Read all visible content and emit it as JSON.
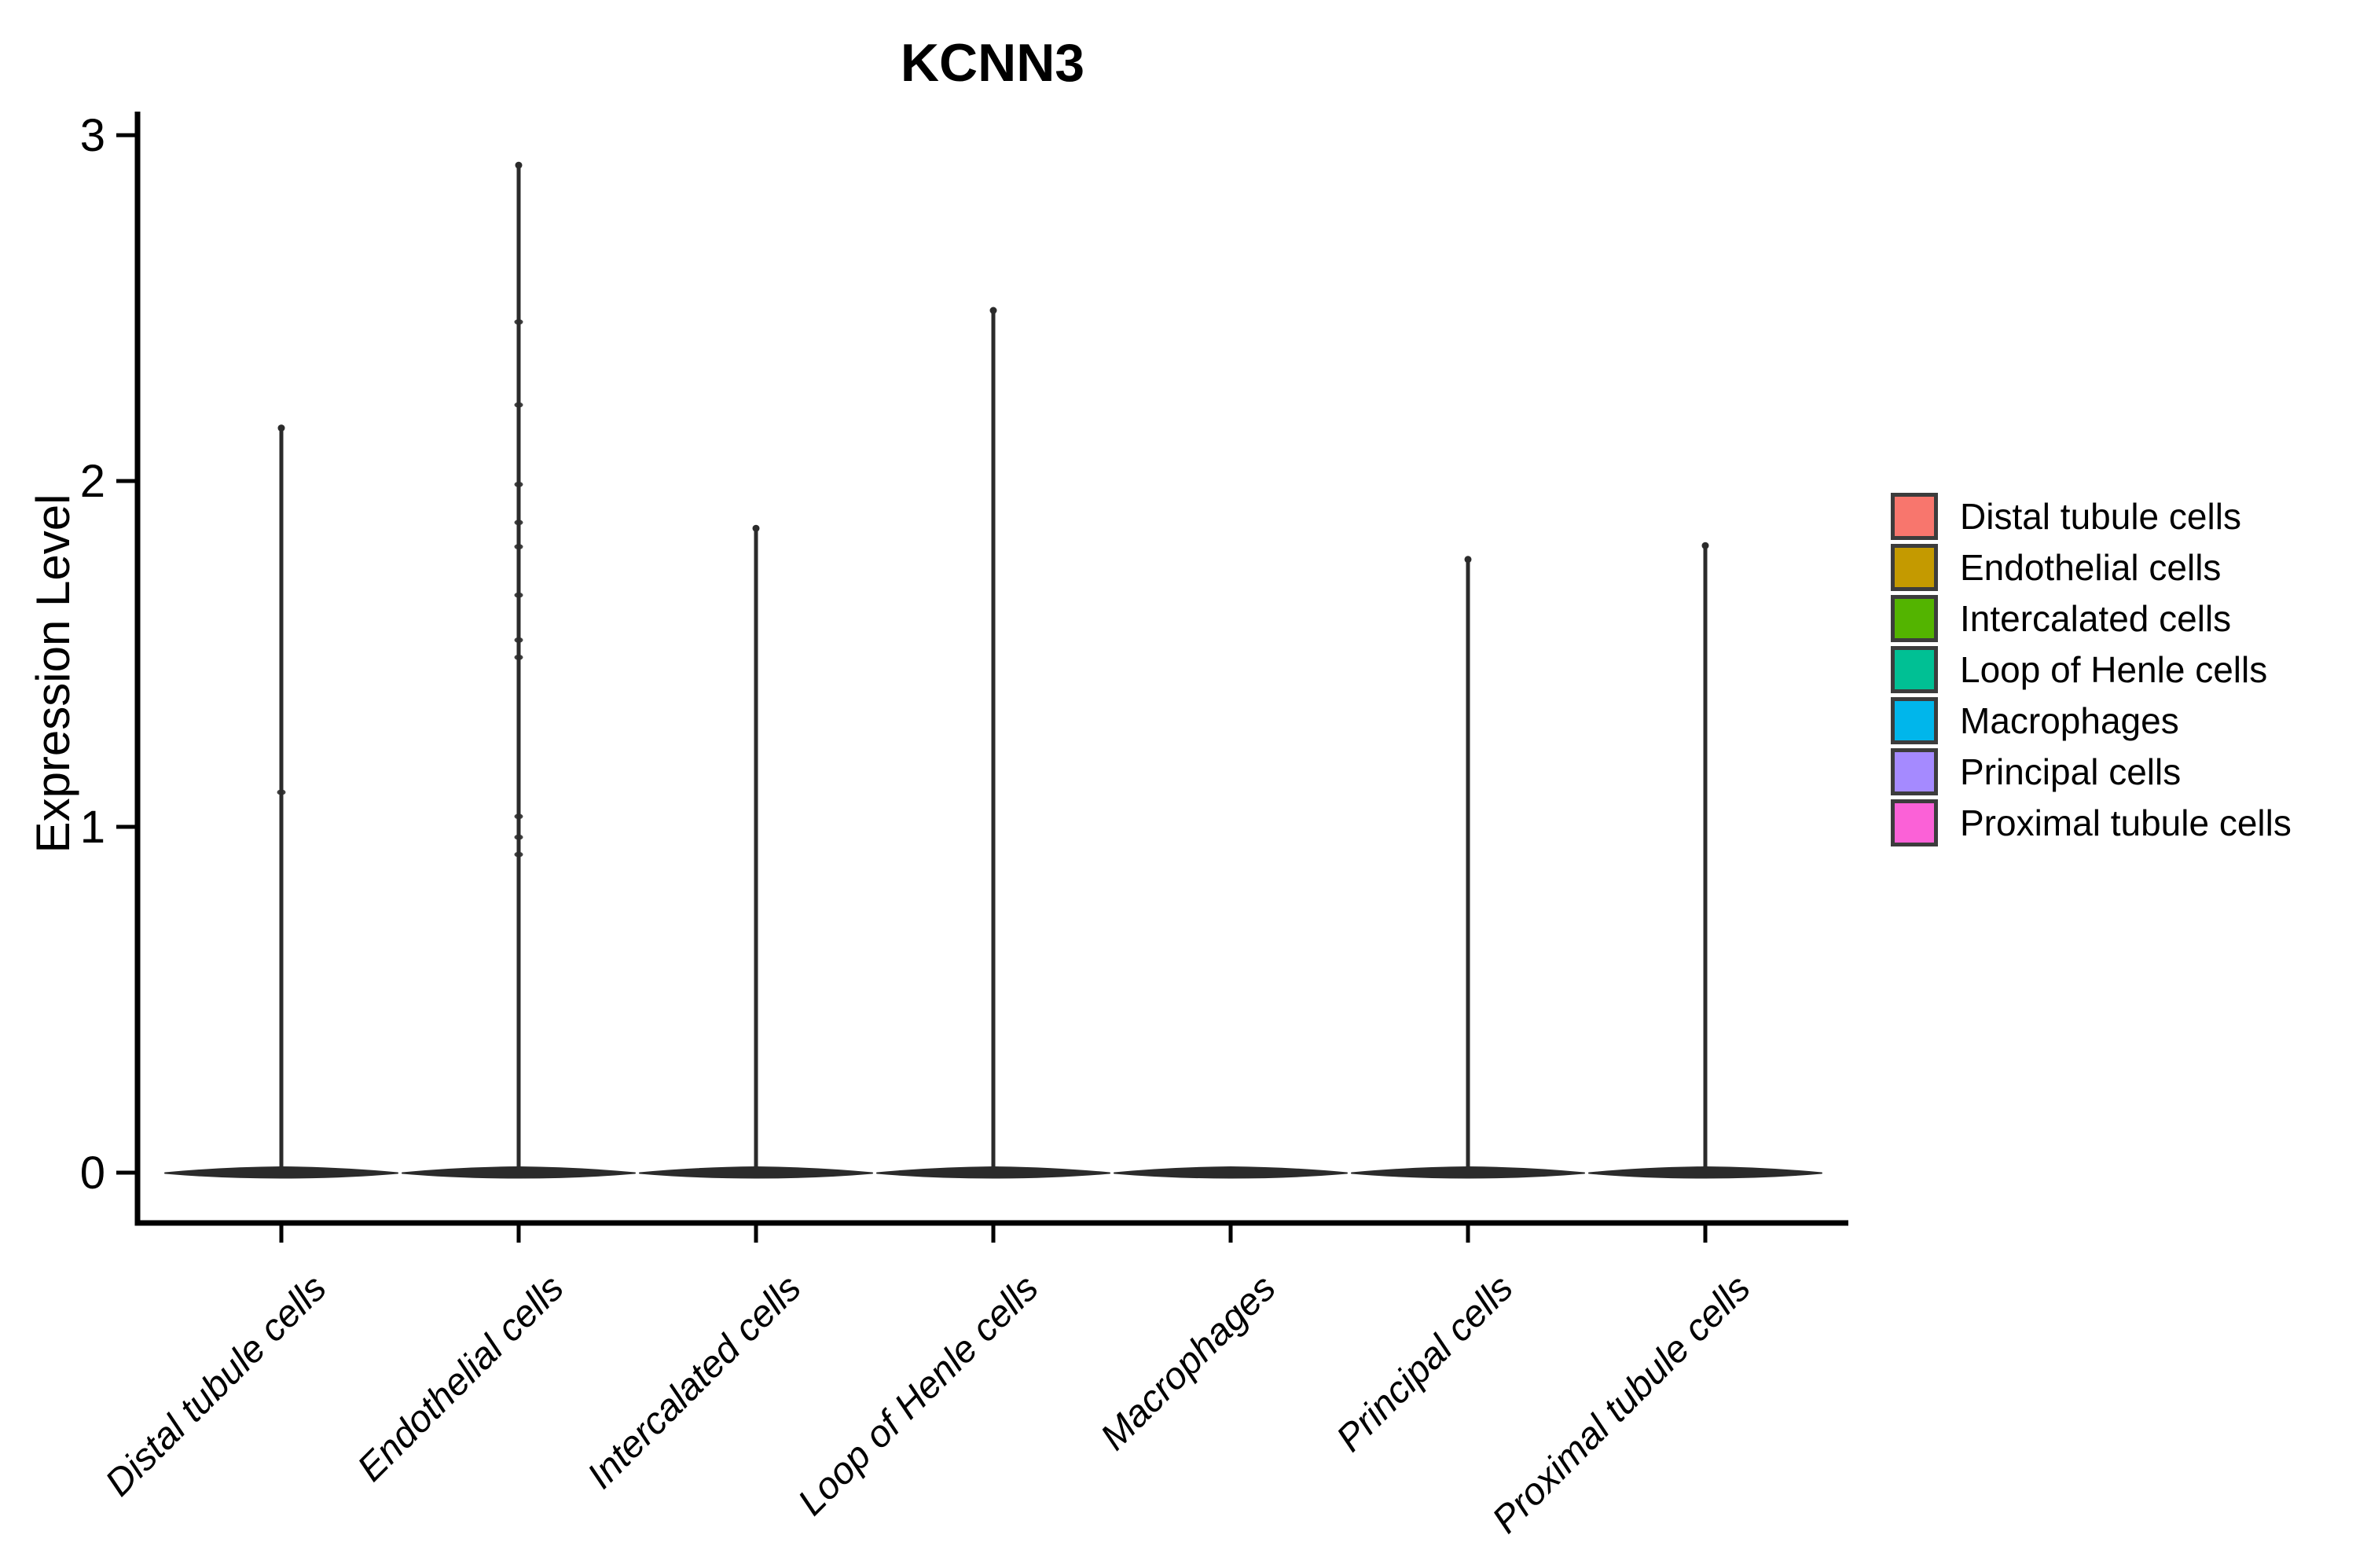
{
  "title": "KCNN3",
  "y_axis": {
    "label": "Expression Level"
  },
  "legend": {
    "position": "right",
    "items": [
      {
        "label": "Distal tubule cells",
        "color": "#F8766D"
      },
      {
        "label": "Endothelial cells",
        "color": "#C49A00"
      },
      {
        "label": "Intercalated cells",
        "color": "#53B400"
      },
      {
        "label": "Loop of Henle cells",
        "color": "#00C094"
      },
      {
        "label": "Macrophages",
        "color": "#00B6EB"
      },
      {
        "label": "Principal cells",
        "color": "#A58AFF"
      },
      {
        "label": "Proximal tubule cells",
        "color": "#FB61D7"
      }
    ]
  },
  "chart_data": {
    "type": "violin",
    "title": "KCNN3",
    "xlabel": "",
    "ylabel": "Expression Level",
    "ylim": [
      0,
      3
    ],
    "y_ticks": [
      0,
      1,
      2,
      3
    ],
    "grid": false,
    "legend_position": "right",
    "x_tick_angle": 45,
    "categories": [
      "Distal tubule cells",
      "Endothelial cells",
      "Intercalated cells",
      "Loop of Henle cells",
      "Macrophages",
      "Principal cells",
      "Proximal tubule cells"
    ],
    "series": [
      {
        "name": "Distal tubule cells",
        "color": "#F8766D",
        "density_peak_at": 0,
        "max_expression": 2.16,
        "bump_values": [
          1.1
        ]
      },
      {
        "name": "Endothelial cells",
        "color": "#C49A00",
        "density_peak_at": 0,
        "max_expression": 2.92,
        "bump_values": [
          2.46,
          2.22,
          1.99,
          1.88,
          1.81,
          1.67,
          1.54,
          1.49,
          1.03,
          0.97,
          0.92
        ]
      },
      {
        "name": "Intercalated cells",
        "color": "#53B400",
        "density_peak_at": 0,
        "max_expression": 1.87,
        "bump_values": []
      },
      {
        "name": "Loop of Henle cells",
        "color": "#00C094",
        "density_peak_at": 0,
        "max_expression": 2.5,
        "bump_values": []
      },
      {
        "name": "Macrophages",
        "color": "#00B6EB",
        "density_peak_at": 0,
        "max_expression": 0.0,
        "bump_values": []
      },
      {
        "name": "Principal cells",
        "color": "#A58AFF",
        "density_peak_at": 0,
        "max_expression": 1.78,
        "bump_values": []
      },
      {
        "name": "Proximal tubule cells",
        "color": "#FB61D7",
        "density_peak_at": 0,
        "max_expression": 1.82,
        "bump_values": []
      }
    ]
  }
}
